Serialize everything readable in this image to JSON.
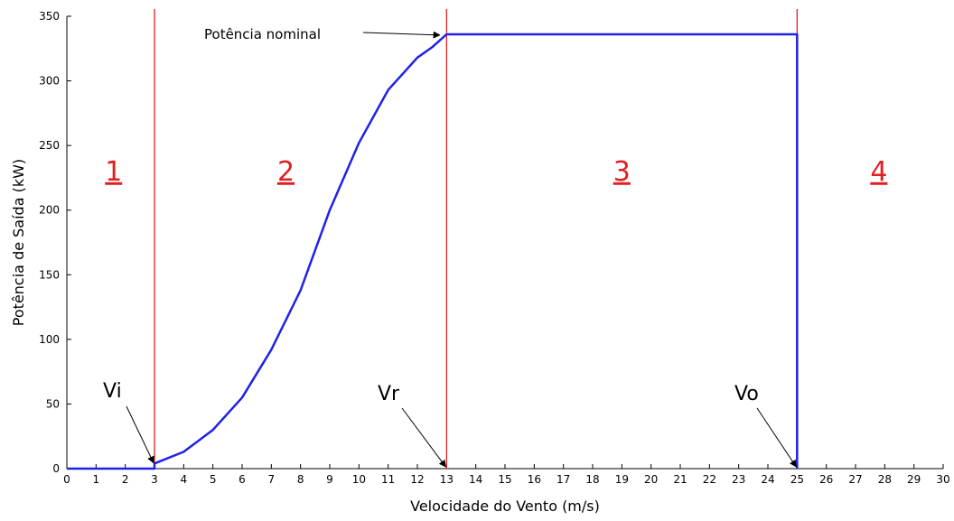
{
  "chart_data": {
    "type": "line",
    "title": "",
    "xlabel": "Velocidade do Vento (m/s)",
    "ylabel": "Potência de Saída (kW)",
    "xlim": [
      0,
      30
    ],
    "ylim": [
      0,
      350
    ],
    "x_ticks": [
      "0",
      "1",
      "2",
      "3",
      "4",
      "5",
      "6",
      "7",
      "8",
      "9",
      "10",
      "11",
      "12",
      "13",
      "14",
      "15",
      "16",
      "17",
      "18",
      "19",
      "20",
      "21",
      "22",
      "23",
      "24",
      "25",
      "26",
      "27",
      "28",
      "29",
      "30"
    ],
    "y_ticks": [
      "0",
      "50",
      "100",
      "150",
      "200",
      "250",
      "300",
      "350"
    ],
    "grid": false,
    "series": [
      {
        "color": "#2020e8",
        "x": [
          0,
          3,
          3,
          4,
          5,
          6,
          7,
          8,
          9,
          10,
          11,
          12,
          12.5,
          13,
          25,
          25
        ],
        "y": [
          0,
          0,
          4,
          13,
          30,
          55,
          92,
          138,
          200,
          252,
          293,
          318,
          326,
          336,
          336,
          0
        ]
      }
    ],
    "vertical_lines": {
      "x": [
        3,
        13,
        25
      ],
      "color": "#e02020"
    },
    "regions": [
      {
        "label": "1",
        "x": 1.6,
        "y": 230
      },
      {
        "label": "2",
        "x": 7.5,
        "y": 230
      },
      {
        "label": "3",
        "x": 19.0,
        "y": 230
      },
      {
        "label": "4",
        "x": 27.8,
        "y": 230
      }
    ],
    "region_color": "#e02020",
    "annotations": [
      {
        "id": "vi",
        "text": "Vi",
        "target": [
          3,
          3
        ]
      },
      {
        "id": "vr",
        "text": "Vr",
        "target": [
          13,
          0
        ]
      },
      {
        "id": "vo",
        "text": "Vo",
        "target": [
          25,
          0
        ]
      },
      {
        "id": "nominal",
        "text": "Potência nominal",
        "target": [
          12.8,
          334
        ]
      }
    ]
  }
}
